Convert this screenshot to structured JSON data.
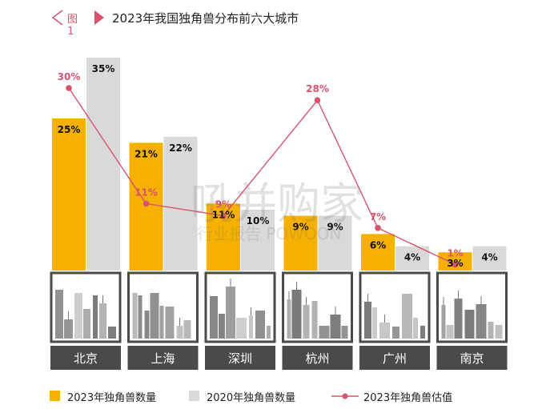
{
  "header": {
    "fig_label": "图1",
    "title": "2023年我国独角兽分布前六大城市"
  },
  "colors": {
    "accent": "#d9536e",
    "bar_2023": "#f5b000",
    "bar_2020": "#d9d9d9",
    "line": "#d9536e",
    "city_box": "#4a4a4a"
  },
  "chart_data": {
    "type": "bar",
    "categories": [
      "北京",
      "上海",
      "深圳",
      "杭州",
      "广州",
      "南京"
    ],
    "series": [
      {
        "name": "2023年独角兽数量",
        "type": "bar",
        "values": [
          25,
          21,
          11,
          9,
          6,
          3
        ],
        "labels": [
          "25%",
          "21%",
          "11%",
          "9%",
          "6%",
          "3%"
        ]
      },
      {
        "name": "2020年独角兽数量",
        "type": "bar",
        "values": [
          35,
          22,
          10,
          9,
          4,
          4
        ],
        "labels": [
          "35%",
          "22%",
          "10%",
          "9%",
          "4%",
          "4%"
        ]
      },
      {
        "name": "2023年独角兽估值",
        "type": "line",
        "values": [
          30,
          11,
          9,
          28,
          7,
          1
        ],
        "labels": [
          "30%",
          "11%",
          "9%",
          "28%",
          "7%",
          "1%"
        ]
      }
    ],
    "ylim": [
      0,
      36
    ],
    "grid": false,
    "legend": "bottom"
  },
  "watermark": {
    "main": "吼并购家",
    "sub": "行业报告 POWOON"
  },
  "icons": [
    "skyline-icon"
  ]
}
